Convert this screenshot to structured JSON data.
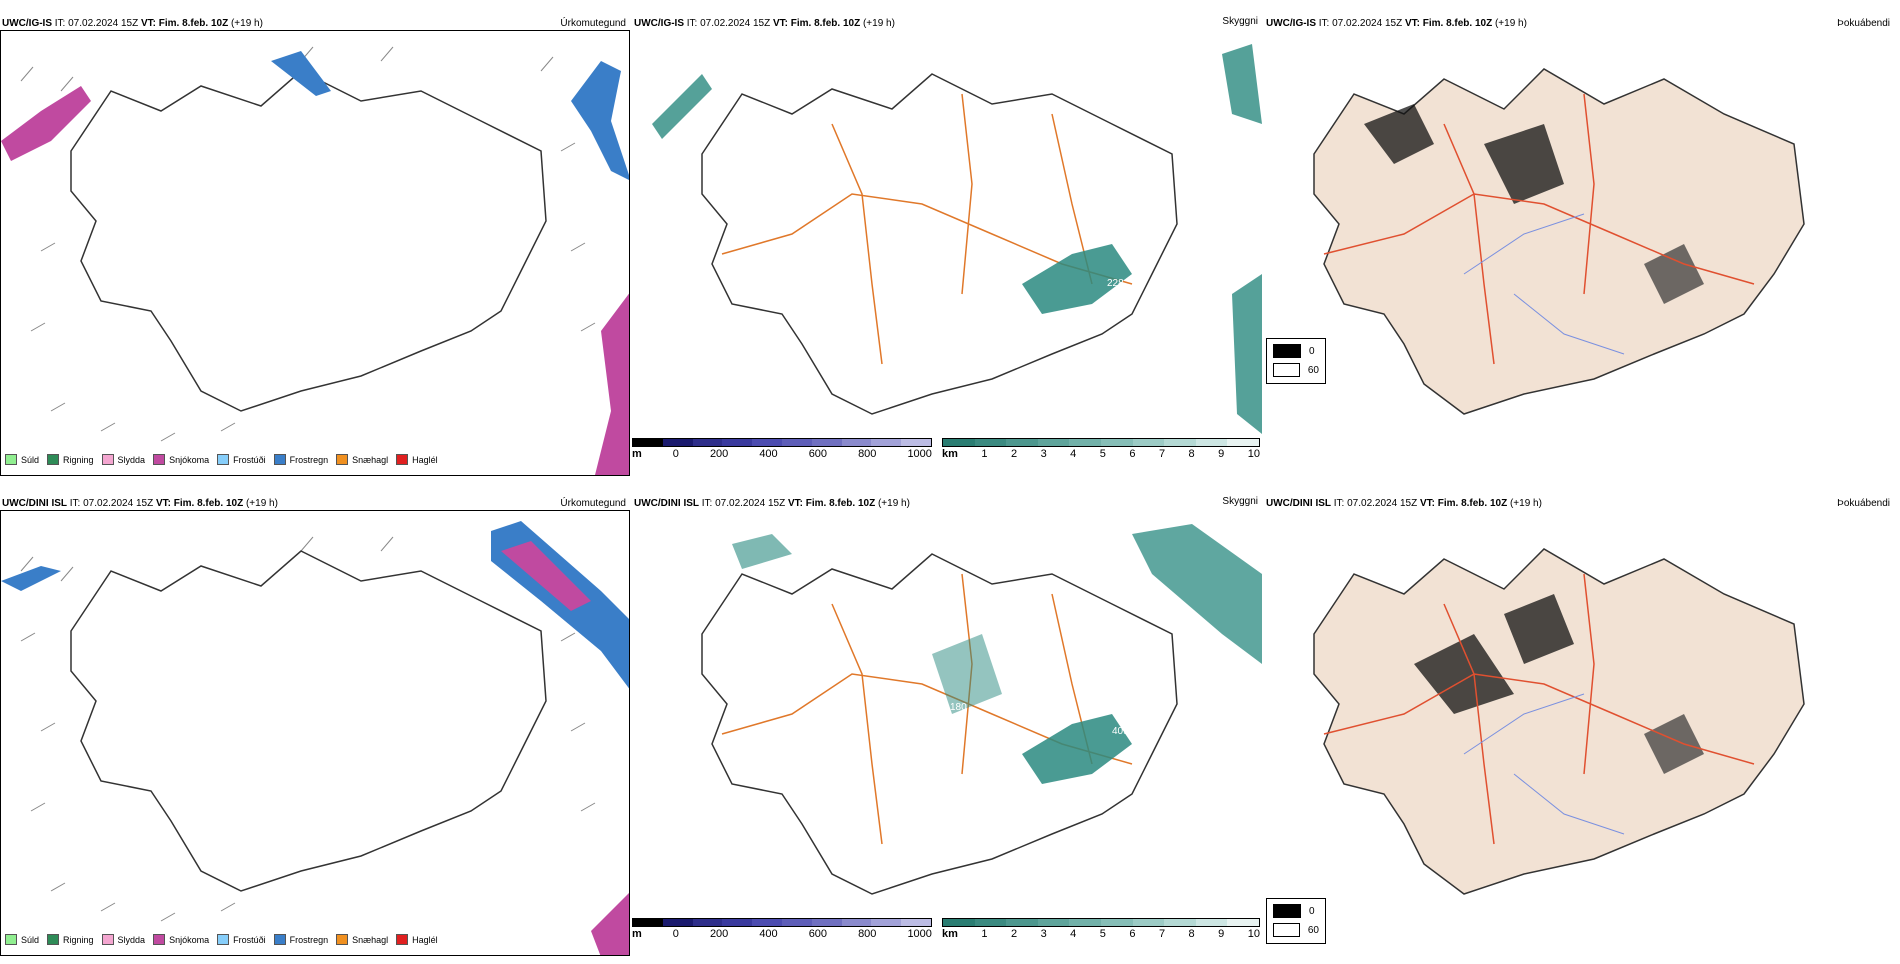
{
  "rows": [
    {
      "model": "UWC/IG-IS",
      "precip": {
        "it": " IT: 07.02.2024 15Z ",
        "vt": "VT: Fim. 8.feb. 10Z",
        "lead": " (+19 h)",
        "title": "Úrkomutegund"
      },
      "vis": {
        "it": " IT: 07.02.2024 15Z ",
        "vt": "VT: Fim. 8.feb. 10Z",
        "lead": " (+19 h)",
        "title": "Skyggni",
        "label": "228"
      },
      "cloud": {
        "it": " IT: 07.02.2024 15Z ",
        "vt": "VT: Fim. 8.feb. 10Z",
        "lead": " (+19 h)",
        "title": "Þokuábendi"
      }
    },
    {
      "model": "UWC/DINI ISL",
      "precip": {
        "it": " IT: 07.02.2024 15Z ",
        "vt": "VT: Fim. 8.feb. 10Z",
        "lead": " (+19 h)",
        "title": "Úrkomutegund"
      },
      "vis": {
        "it": " IT: 07.02.2024 15Z ",
        "vt": "VT: Fim. 8.feb. 10Z",
        "lead": " (+19 h)",
        "title": "Skyggni",
        "label": "409",
        "label2": "180"
      },
      "cloud": {
        "it": " IT: 07.02.2024 15Z ",
        "vt": "VT: Fim. 8.feb. 10Z",
        "lead": " (+19 h)",
        "title": "Þokuábendi"
      }
    }
  ],
  "precip_legend": [
    {
      "label": "Súld",
      "color": "#90ee90"
    },
    {
      "label": "Rigning",
      "color": "#2e8b57"
    },
    {
      "label": "Slydda",
      "color": "#f4a6d0"
    },
    {
      "label": "Snjókoma",
      "color": "#c04aa0"
    },
    {
      "label": "Frostúði",
      "color": "#87cefa"
    },
    {
      "label": "Frostregn",
      "color": "#3a7ec8"
    },
    {
      "label": "Snæhagl",
      "color": "#f09020"
    },
    {
      "label": "Haglél",
      "color": "#e02020"
    }
  ],
  "scale_m": {
    "unit": "m",
    "ticks": [
      "0",
      "200",
      "400",
      "600",
      "800",
      "1000"
    ],
    "colors": [
      "#000000",
      "#1a1a6e",
      "#2e2e8a",
      "#3a3a9e",
      "#4c4cb0",
      "#5e5eb8",
      "#7070c0",
      "#8a8acc",
      "#a2a2d8",
      "#bcbce4"
    ]
  },
  "scale_km": {
    "unit": "km",
    "ticks": [
      "1",
      "2",
      "3",
      "4",
      "5",
      "6",
      "7",
      "8",
      "9",
      "10"
    ],
    "colors": [
      "#2a7d72",
      "#3b8a80",
      "#4d978e",
      "#5fa49b",
      "#72b1a9",
      "#86beb7",
      "#9ccbc5",
      "#b4d9d4",
      "#cde6e3",
      "#e8f3f1"
    ]
  },
  "cloud_legend": [
    {
      "label": "0",
      "color": "#000000"
    },
    {
      "label": "60",
      "color": "#ffffff"
    }
  ],
  "colors": {
    "snow": "#c04aa0",
    "frz": "#3a7ec8",
    "teal": "#2a8a80",
    "road": "#e0782a",
    "land": "#f2e2d4",
    "coast": "#333333"
  }
}
